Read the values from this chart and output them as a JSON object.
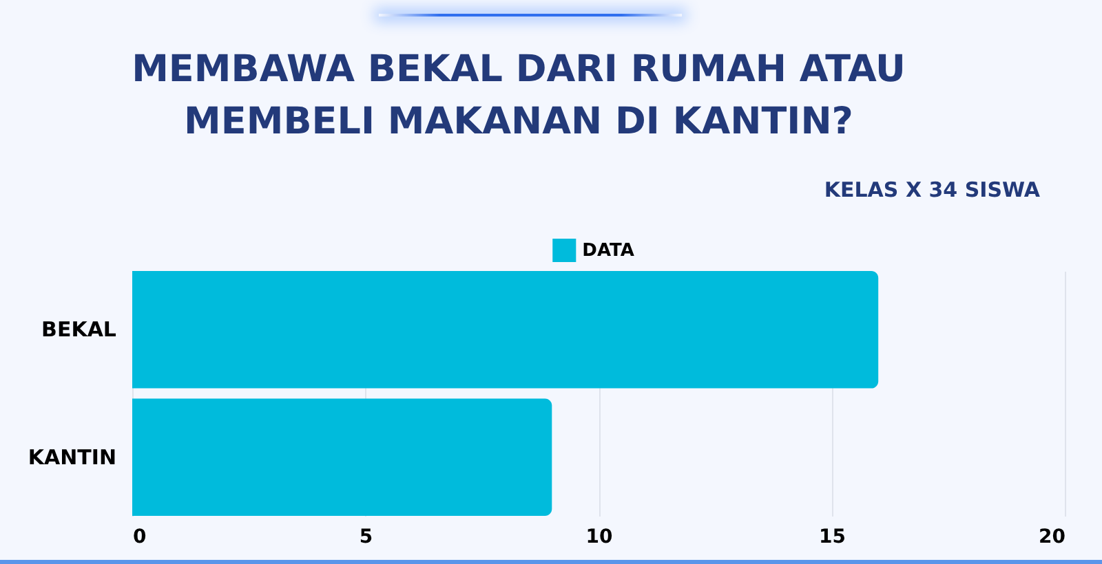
{
  "chart_data": {
    "type": "bar",
    "orientation": "horizontal",
    "title": "MEMBAWA BEKAL DARI RUMAH ATAU MEMBELI MAKANAN DI KANTIN?",
    "subtitle": "KELAS X 34 SISWA",
    "categories": [
      "BEKAL",
      "KANTIN"
    ],
    "series": [
      {
        "name": "DATA",
        "color": "#00bbdc",
        "values": [
          16,
          9
        ]
      }
    ],
    "xlim": [
      0,
      20
    ],
    "xticks": [
      0,
      5,
      10,
      15,
      20
    ],
    "grid": "x",
    "legend": "top"
  }
}
